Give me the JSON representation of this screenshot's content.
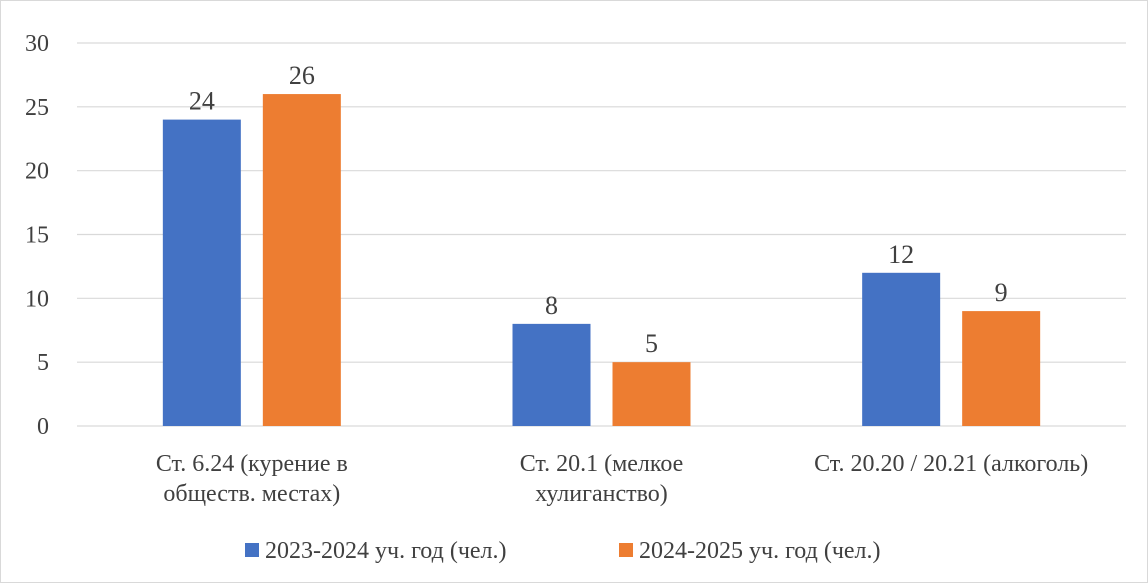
{
  "chart_data": {
    "type": "bar",
    "categories": [
      [
        "Ст. 6.24 (курение в",
        "обществ. местах)"
      ],
      [
        "Ст. 20.1 (мелкое",
        "хулиганство)"
      ],
      [
        "Ст. 20.20 / 20.21 (алкоголь)"
      ]
    ],
    "series": [
      {
        "name": "2023-2024 уч. год (чел.)",
        "values": [
          24,
          8,
          12
        ],
        "color": "#4472C4"
      },
      {
        "name": "2024-2025 уч. год (чел.)",
        "values": [
          26,
          5,
          9
        ],
        "color": "#ED7D31"
      }
    ],
    "ylim": [
      0,
      30
    ],
    "yticks": [
      0,
      5,
      10,
      15,
      20,
      25,
      30
    ],
    "grid": true,
    "legend": "bottom",
    "gridColor": "#d9d9d9",
    "textColor": "#404040"
  }
}
